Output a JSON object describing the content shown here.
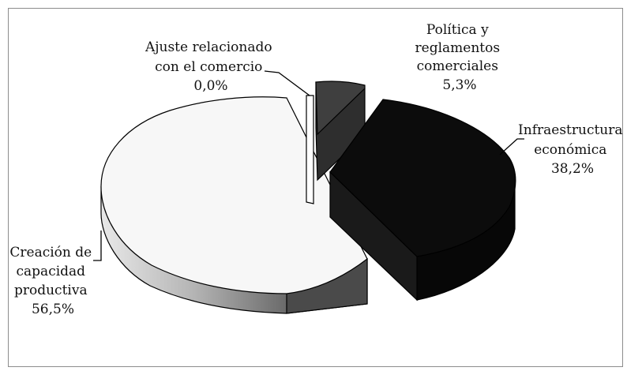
{
  "chart_data": {
    "type": "pie",
    "style": "3d-exploded",
    "slices": [
      {
        "label_lines": [
          "Ajuste relacionado",
          "con el comercio"
        ],
        "value_label": "0,0%",
        "value": 0.0,
        "color": "#ffffff"
      },
      {
        "label_lines": [
          "Política y",
          "reglamentos",
          "comerciales"
        ],
        "value_label": "5,3%",
        "value": 5.3,
        "color": "#3a3a3a"
      },
      {
        "label_lines": [
          "Infraestructura",
          "económica"
        ],
        "value_label": "38,2%",
        "value": 38.2,
        "color": "#0c0c0c"
      },
      {
        "label_lines": [
          "Creación de",
          "capacidad",
          "productiva"
        ],
        "value_label": "56,5%",
        "value": 56.5,
        "color": "#f7f7f7"
      }
    ]
  }
}
